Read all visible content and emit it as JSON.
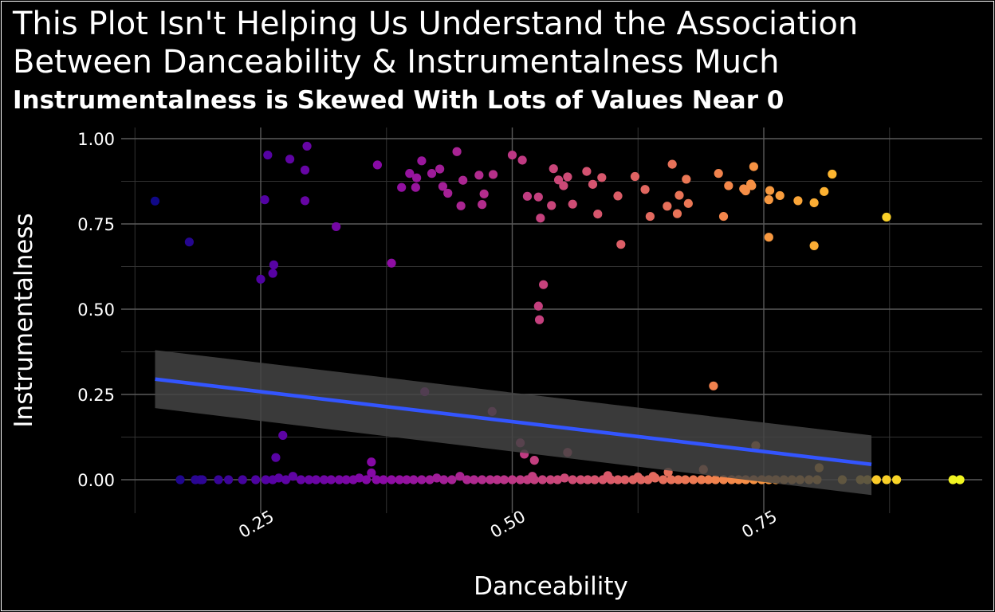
{
  "chart_data": {
    "type": "scatter",
    "title": "This Plot Isn't Helping Us Understand the Association Between Danceability & Instrumentalness Much",
    "subtitle": "Instrumentalness is Skewed With Lots of Values Near 0",
    "xlabel": "Danceability",
    "ylabel": "Instrumentalness",
    "xlim": [
      0.12,
      0.88
    ],
    "ylim": [
      -0.1,
      1.02
    ],
    "x_ticks": [
      0.25,
      0.5,
      0.75
    ],
    "x_tick_labels": [
      "0.25",
      "0.50",
      "0.75"
    ],
    "y_ticks": [
      0,
      0.25,
      0.5,
      0.75,
      1
    ],
    "y_tick_labels": [
      "0.00",
      "0.25",
      "0.50",
      "0.75",
      "1.00"
    ],
    "grid": true,
    "background": "#000000",
    "point_color_scale": "plasma (by danceability)",
    "trend_line": {
      "method": "linear",
      "color": "#3355ff",
      "x": [
        0.145,
        0.857
      ],
      "y": [
        0.295,
        0.045
      ],
      "ci_low": [
        0.21,
        -0.045
      ],
      "ci_high": [
        0.38,
        0.13
      ],
      "ci_color": "#444444"
    },
    "points": [
      [
        0.145,
        0.817
      ],
      [
        0.179,
        0.697
      ],
      [
        0.257,
        0.952
      ],
      [
        0.296,
        0.978
      ],
      [
        0.279,
        0.94
      ],
      [
        0.325,
        0.742
      ],
      [
        0.294,
        0.908
      ],
      [
        0.254,
        0.821
      ],
      [
        0.294,
        0.818
      ],
      [
        0.263,
        0.63
      ],
      [
        0.262,
        0.605
      ],
      [
        0.25,
        0.588
      ],
      [
        0.366,
        0.923
      ],
      [
        0.38,
        0.635
      ],
      [
        0.39,
        0.857
      ],
      [
        0.398,
        0.898
      ],
      [
        0.404,
        0.857
      ],
      [
        0.405,
        0.885
      ],
      [
        0.41,
        0.935
      ],
      [
        0.42,
        0.898
      ],
      [
        0.428,
        0.911
      ],
      [
        0.431,
        0.86
      ],
      [
        0.436,
        0.84
      ],
      [
        0.445,
        0.962
      ],
      [
        0.451,
        0.878
      ],
      [
        0.449,
        0.803
      ],
      [
        0.467,
        0.893
      ],
      [
        0.472,
        0.838
      ],
      [
        0.47,
        0.807
      ],
      [
        0.481,
        0.895
      ],
      [
        0.5,
        0.952
      ],
      [
        0.51,
        0.937
      ],
      [
        0.515,
        0.831
      ],
      [
        0.526,
        0.829
      ],
      [
        0.528,
        0.767
      ],
      [
        0.531,
        0.572
      ],
      [
        0.526,
        0.509
      ],
      [
        0.527,
        0.469
      ],
      [
        0.541,
        0.912
      ],
      [
        0.546,
        0.879
      ],
      [
        0.551,
        0.862
      ],
      [
        0.555,
        0.888
      ],
      [
        0.539,
        0.804
      ],
      [
        0.56,
        0.808
      ],
      [
        0.574,
        0.904
      ],
      [
        0.58,
        0.866
      ],
      [
        0.589,
        0.886
      ],
      [
        0.585,
        0.779
      ],
      [
        0.605,
        0.832
      ],
      [
        0.608,
        0.69
      ],
      [
        0.622,
        0.889
      ],
      [
        0.632,
        0.851
      ],
      [
        0.637,
        0.772
      ],
      [
        0.654,
        0.802
      ],
      [
        0.659,
        0.925
      ],
      [
        0.666,
        0.834
      ],
      [
        0.664,
        0.78
      ],
      [
        0.675,
        0.81
      ],
      [
        0.673,
        0.881
      ],
      [
        0.705,
        0.898
      ],
      [
        0.71,
        0.772
      ],
      [
        0.715,
        0.862
      ],
      [
        0.73,
        0.853
      ],
      [
        0.732,
        0.847
      ],
      [
        0.738,
        0.862
      ],
      [
        0.74,
        0.918
      ],
      [
        0.737,
        0.867
      ],
      [
        0.756,
        0.848
      ],
      [
        0.755,
        0.821
      ],
      [
        0.755,
        0.711
      ],
      [
        0.766,
        0.833
      ],
      [
        0.784,
        0.818
      ],
      [
        0.8,
        0.812
      ],
      [
        0.8,
        0.686
      ],
      [
        0.81,
        0.845
      ],
      [
        0.818,
        0.896
      ],
      [
        0.872,
        0.77
      ],
      [
        0.413,
        0.258
      ],
      [
        0.48,
        0.2
      ],
      [
        0.508,
        0.108
      ],
      [
        0.512,
        0.075
      ],
      [
        0.522,
        0.057
      ],
      [
        0.555,
        0.08
      ],
      [
        0.7,
        0.275
      ],
      [
        0.742,
        0.1
      ],
      [
        0.805,
        0.035
      ],
      [
        0.272,
        0.13
      ],
      [
        0.265,
        0.065
      ],
      [
        0.36,
        0.052
      ],
      [
        0.17,
        0.0
      ],
      [
        0.185,
        0.0
      ],
      [
        0.19,
        0.0
      ],
      [
        0.192,
        0.0
      ],
      [
        0.208,
        0.0
      ],
      [
        0.218,
        0.0
      ],
      [
        0.232,
        0.0
      ],
      [
        0.245,
        0.0
      ],
      [
        0.255,
        0.0
      ],
      [
        0.262,
        0.0
      ],
      [
        0.268,
        0.005
      ],
      [
        0.275,
        0.0
      ],
      [
        0.282,
        0.01
      ],
      [
        0.29,
        0.0
      ],
      [
        0.298,
        0.0
      ],
      [
        0.305,
        0.0
      ],
      [
        0.313,
        0.0
      ],
      [
        0.32,
        0.0
      ],
      [
        0.328,
        0.0
      ],
      [
        0.335,
        0.0
      ],
      [
        0.342,
        0.0
      ],
      [
        0.348,
        0.005
      ],
      [
        0.355,
        0.0
      ],
      [
        0.36,
        0.02
      ],
      [
        0.365,
        0.0
      ],
      [
        0.372,
        0.0
      ],
      [
        0.38,
        0.0
      ],
      [
        0.388,
        0.0
      ],
      [
        0.395,
        0.0
      ],
      [
        0.402,
        0.0
      ],
      [
        0.41,
        0.0
      ],
      [
        0.418,
        0.0
      ],
      [
        0.425,
        0.005
      ],
      [
        0.432,
        0.0
      ],
      [
        0.44,
        0.0
      ],
      [
        0.448,
        0.01
      ],
      [
        0.455,
        0.0
      ],
      [
        0.462,
        0.0
      ],
      [
        0.47,
        0.0
      ],
      [
        0.478,
        0.0
      ],
      [
        0.485,
        0.0
      ],
      [
        0.492,
        0.0
      ],
      [
        0.5,
        0.0
      ],
      [
        0.508,
        0.0
      ],
      [
        0.515,
        0.0
      ],
      [
        0.522,
        0.0
      ],
      [
        0.53,
        0.0
      ],
      [
        0.538,
        0.0
      ],
      [
        0.545,
        0.0
      ],
      [
        0.552,
        0.005
      ],
      [
        0.56,
        0.0
      ],
      [
        0.568,
        0.0
      ],
      [
        0.575,
        0.0
      ],
      [
        0.582,
        0.0
      ],
      [
        0.59,
        0.0
      ],
      [
        0.598,
        0.0
      ],
      [
        0.605,
        0.0
      ],
      [
        0.612,
        0.0
      ],
      [
        0.62,
        0.0
      ],
      [
        0.628,
        0.0
      ],
      [
        0.635,
        0.0
      ],
      [
        0.642,
        0.005
      ],
      [
        0.65,
        0.0
      ],
      [
        0.658,
        0.0
      ],
      [
        0.665,
        0.0
      ],
      [
        0.672,
        0.0
      ],
      [
        0.68,
        0.0
      ],
      [
        0.688,
        0.0
      ],
      [
        0.695,
        0.0
      ],
      [
        0.702,
        0.0
      ],
      [
        0.71,
        0.0
      ],
      [
        0.718,
        0.0
      ],
      [
        0.725,
        0.0
      ],
      [
        0.732,
        0.0
      ],
      [
        0.74,
        0.0
      ],
      [
        0.748,
        0.0
      ],
      [
        0.755,
        0.0
      ],
      [
        0.762,
        0.0
      ],
      [
        0.77,
        0.0
      ],
      [
        0.778,
        0.0
      ],
      [
        0.786,
        0.0
      ],
      [
        0.795,
        0.0
      ],
      [
        0.803,
        0.0
      ],
      [
        0.828,
        0.0
      ],
      [
        0.846,
        0.0
      ],
      [
        0.853,
        0.0
      ],
      [
        0.862,
        0.0
      ],
      [
        0.872,
        0.0
      ],
      [
        0.882,
        0.0
      ],
      [
        0.938,
        0.0
      ],
      [
        0.945,
        0.0
      ],
      [
        0.64,
        0.01
      ],
      [
        0.655,
        0.022
      ],
      [
        0.69,
        0.03
      ],
      [
        0.595,
        0.012
      ],
      [
        0.625,
        0.008
      ],
      [
        0.52,
        0.01
      ]
    ]
  }
}
